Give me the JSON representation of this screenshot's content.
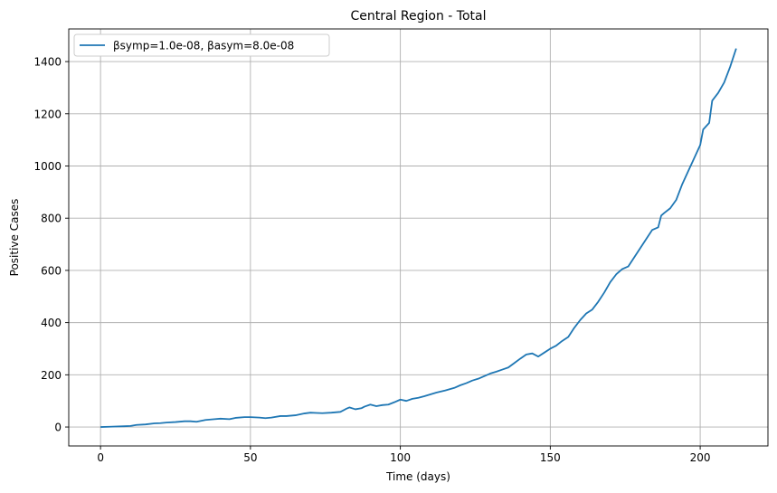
{
  "chart_data": {
    "type": "line",
    "title": "Central Region - Total",
    "xlabel": "Time (days)",
    "ylabel": "Positive Cases",
    "xlim": [
      -10.6,
      222.6
    ],
    "ylim": [
      -72.6,
      1525
    ],
    "xticks": [
      0,
      50,
      100,
      150,
      200
    ],
    "yticks": [
      0,
      200,
      400,
      600,
      800,
      1000,
      1200,
      1400
    ],
    "xtick_labels": [
      "0",
      "50",
      "100",
      "150",
      "200"
    ],
    "ytick_labels": [
      "0",
      "200",
      "400",
      "600",
      "800",
      "1000",
      "1200",
      "1400"
    ],
    "grid": true,
    "legend_position": "upper-left",
    "series": [
      {
        "name": "βsymp=1.0e-08, βasym=8.0e-08",
        "color": "#1f77b4",
        "x": [
          0,
          3,
          5,
          8,
          10,
          12,
          15,
          18,
          20,
          22,
          25,
          28,
          30,
          32,
          35,
          38,
          40,
          43,
          45,
          48,
          50,
          53,
          55,
          57,
          60,
          62,
          65,
          68,
          70,
          72,
          74,
          77,
          80,
          82,
          83,
          85,
          87,
          88,
          90,
          92,
          94,
          96,
          98,
          100,
          102,
          104,
          106,
          108,
          110,
          112,
          115,
          118,
          120,
          122,
          124,
          126,
          128,
          130,
          132,
          134,
          136,
          138,
          140,
          142,
          144,
          146,
          148,
          150,
          152,
          154,
          156,
          158,
          160,
          162,
          164,
          166,
          168,
          170,
          172,
          174,
          176,
          178,
          180,
          182,
          184,
          186,
          187,
          188,
          190,
          192,
          194,
          196,
          198,
          200,
          201,
          203,
          204,
          206,
          208,
          210,
          212
        ],
        "y": [
          0,
          1,
          2,
          3,
          4,
          8,
          10,
          14,
          15,
          17,
          19,
          22,
          22,
          20,
          27,
          30,
          32,
          30,
          35,
          38,
          38,
          36,
          34,
          36,
          42,
          42,
          45,
          52,
          55,
          54,
          53,
          55,
          58,
          70,
          75,
          68,
          72,
          78,
          86,
          80,
          84,
          86,
          95,
          105,
          100,
          108,
          112,
          118,
          125,
          132,
          140,
          150,
          160,
          168,
          178,
          185,
          195,
          205,
          212,
          220,
          228,
          245,
          262,
          278,
          282,
          270,
          285,
          300,
          312,
          330,
          345,
          380,
          410,
          435,
          450,
          480,
          515,
          555,
          585,
          605,
          615,
          650,
          685,
          720,
          755,
          765,
          810,
          820,
          838,
          870,
          930,
          980,
          1030,
          1080,
          1140,
          1165,
          1250,
          1280,
          1320,
          1380,
          1450
        ]
      }
    ]
  }
}
